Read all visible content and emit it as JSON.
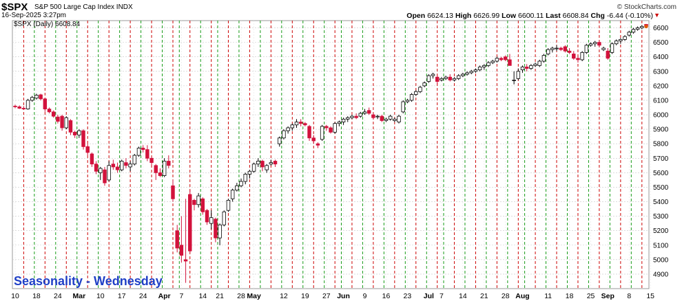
{
  "header": {
    "symbol": "$SPX",
    "description": "S&P 500 Large Cap Index  INDX",
    "credit": "© StockCharts.com",
    "date": "16-Sep-2025 3:27pm",
    "open_label": "Open",
    "open": "6624.13",
    "high_label": "High",
    "high": "6626.99",
    "low_label": "Low",
    "low": "6600.11",
    "last_label": "Last",
    "last": "6608.84",
    "chg_label": "Chg",
    "chg": "-6.44 (-0.10%)",
    "chg_icon": "down-triangle-icon"
  },
  "legend": {
    "text": "$SPX (Daily) 6608.84"
  },
  "overlay_text": "Seasonality - Wednesday",
  "colors": {
    "up": "#ffffff",
    "down": "#d2123c",
    "wed_line": "#cc0000",
    "other_line": "#159a15",
    "grid": "#c8c8c8",
    "title_text": "#1f3fc6"
  },
  "chart_data": {
    "type": "candlestick",
    "title": "$SPX (Daily)",
    "ylim": [
      4800,
      6650
    ],
    "y_ticks": [
      4900,
      5000,
      5100,
      5200,
      5300,
      5400,
      5500,
      5600,
      5700,
      5800,
      5900,
      6000,
      6100,
      6200,
      6300,
      6400,
      6500,
      6600
    ],
    "grid": true,
    "x_tick_labels": [
      {
        "label": "10",
        "day": 0
      },
      {
        "label": "18",
        "day": 5
      },
      {
        "label": "24",
        "day": 10
      },
      {
        "label": "Mar",
        "day": 15,
        "bold": true
      },
      {
        "label": "10",
        "day": 20
      },
      {
        "label": "17",
        "day": 25
      },
      {
        "label": "24",
        "day": 30
      },
      {
        "label": "Apr",
        "day": 35,
        "bold": true
      },
      {
        "label": "7",
        "day": 39
      },
      {
        "label": "14",
        "day": 44
      },
      {
        "label": "21",
        "day": 48
      },
      {
        "label": "28",
        "day": 53
      },
      {
        "label": "May",
        "day": 56,
        "bold": true
      },
      {
        "label": "12",
        "day": 63
      },
      {
        "label": "19",
        "day": 68
      },
      {
        "label": "27",
        "day": 73
      },
      {
        "label": "Jun",
        "day": 77,
        "bold": true
      },
      {
        "label": "9",
        "day": 82
      },
      {
        "label": "16",
        "day": 87
      },
      {
        "label": "23",
        "day": 92
      },
      {
        "label": "Jul",
        "day": 97,
        "bold": true
      },
      {
        "label": "7",
        "day": 100
      },
      {
        "label": "14",
        "day": 105
      },
      {
        "label": "21",
        "day": 110
      },
      {
        "label": "28",
        "day": 115
      },
      {
        "label": "Aug",
        "day": 119,
        "bold": true
      },
      {
        "label": "11",
        "day": 125
      },
      {
        "label": "18",
        "day": 130
      },
      {
        "label": "25",
        "day": 135
      },
      {
        "label": "Sep",
        "day": 139,
        "bold": true
      },
      {
        "label": "8",
        "day": 144
      },
      {
        "label": "15",
        "day": 149
      }
    ],
    "vertical_markers": {
      "wednesday_days": [
        2,
        7,
        12,
        17,
        22,
        27,
        32,
        37,
        41,
        46,
        50,
        55,
        60,
        65,
        70,
        75,
        79,
        84,
        89,
        94,
        99,
        103,
        108,
        113,
        118,
        122,
        127,
        132,
        137,
        142,
        147
      ],
      "other_days": [
        5,
        10,
        15,
        20,
        25,
        30,
        35,
        39,
        44,
        48,
        53,
        58,
        63,
        68,
        73,
        77,
        82,
        87,
        92,
        97,
        101,
        106,
        111,
        116,
        120,
        125,
        130,
        135,
        140,
        145
      ]
    },
    "candles": [
      [
        6060,
        6070,
        6045,
        6055
      ],
      [
        6055,
        6065,
        6040,
        6045
      ],
      [
        6045,
        6060,
        6035,
        6040
      ],
      [
        6040,
        6110,
        6035,
        6100
      ],
      [
        6100,
        6130,
        6090,
        6120
      ],
      [
        6115,
        6145,
        6105,
        6135
      ],
      [
        6138,
        6145,
        6100,
        6110
      ],
      [
        6110,
        6115,
        6020,
        6040
      ],
      [
        6040,
        6050,
        6010,
        6020
      ],
      [
        6020,
        6030,
        5980,
        5990
      ],
      [
        5985,
        6000,
        5940,
        5955
      ],
      [
        5990,
        6000,
        5890,
        5910
      ],
      [
        5910,
        5990,
        5900,
        5980
      ],
      [
        5960,
        5970,
        5860,
        5880
      ],
      [
        5880,
        5890,
        5840,
        5860
      ],
      [
        5860,
        5900,
        5840,
        5890
      ],
      [
        5890,
        5900,
        5760,
        5780
      ],
      [
        5780,
        5800,
        5720,
        5740
      ],
      [
        5730,
        5740,
        5640,
        5660
      ],
      [
        5660,
        5680,
        5590,
        5610
      ],
      [
        5600,
        5640,
        5550,
        5630
      ],
      [
        5620,
        5640,
        5510,
        5530
      ],
      [
        5550,
        5680,
        5540,
        5650
      ],
      [
        5660,
        5690,
        5620,
        5640
      ],
      [
        5640,
        5670,
        5600,
        5620
      ],
      [
        5620,
        5690,
        5610,
        5680
      ],
      [
        5670,
        5700,
        5630,
        5650
      ],
      [
        5640,
        5680,
        5610,
        5660
      ],
      [
        5660,
        5730,
        5650,
        5720
      ],
      [
        5720,
        5780,
        5710,
        5770
      ],
      [
        5770,
        5790,
        5740,
        5760
      ],
      [
        5760,
        5790,
        5680,
        5700
      ],
      [
        5700,
        5710,
        5650,
        5670
      ],
      [
        5650,
        5660,
        5550,
        5600
      ],
      [
        5600,
        5630,
        5570,
        5580
      ],
      [
        5580,
        5700,
        5570,
        5680
      ],
      [
        5680,
        5720,
        5630,
        5650
      ],
      [
        5510,
        5550,
        5400,
        5420
      ],
      [
        5200,
        5240,
        5050,
        5080
      ],
      [
        5100,
        5300,
        4980,
        5030
      ],
      [
        5000,
        5420,
        4840,
        4990
      ],
      [
        5450,
        5480,
        5050,
        5060
      ],
      [
        5410,
        5420,
        5340,
        5380
      ],
      [
        5380,
        5460,
        5360,
        5440
      ],
      [
        5420,
        5430,
        5310,
        5330
      ],
      [
        5340,
        5350,
        5240,
        5260
      ],
      [
        5250,
        5340,
        5210,
        5290
      ],
      [
        5280,
        5290,
        5120,
        5150
      ],
      [
        5150,
        5250,
        5100,
        5240
      ],
      [
        5240,
        5340,
        5230,
        5330
      ],
      [
        5340,
        5420,
        5330,
        5410
      ],
      [
        5420,
        5490,
        5400,
        5480
      ],
      [
        5480,
        5530,
        5470,
        5510
      ],
      [
        5510,
        5560,
        5500,
        5540
      ],
      [
        5540,
        5600,
        5520,
        5590
      ],
      [
        5590,
        5620,
        5560,
        5610
      ],
      [
        5610,
        5670,
        5600,
        5660
      ],
      [
        5660,
        5700,
        5640,
        5680
      ],
      [
        5680,
        5690,
        5610,
        5640
      ],
      [
        5620,
        5660,
        5600,
        5650
      ],
      [
        5660,
        5690,
        5650,
        5670
      ],
      [
        5680,
        5690,
        5640,
        5660
      ],
      [
        5800,
        5850,
        5780,
        5840
      ],
      [
        5840,
        5900,
        5830,
        5890
      ],
      [
        5890,
        5920,
        5870,
        5910
      ],
      [
        5910,
        5940,
        5890,
        5930
      ],
      [
        5930,
        5970,
        5910,
        5950
      ],
      [
        5950,
        5970,
        5920,
        5940
      ],
      [
        5940,
        5950,
        5920,
        5930
      ],
      [
        5920,
        5930,
        5820,
        5840
      ],
      [
        5840,
        5860,
        5800,
        5820
      ],
      [
        5800,
        5810,
        5770,
        5790
      ],
      [
        5830,
        5930,
        5820,
        5920
      ],
      [
        5920,
        5930,
        5890,
        5910
      ],
      [
        5910,
        5920,
        5870,
        5880
      ],
      [
        5880,
        5950,
        5870,
        5940
      ],
      [
        5940,
        5960,
        5920,
        5950
      ],
      [
        5950,
        5980,
        5930,
        5970
      ],
      [
        5970,
        5990,
        5950,
        5980
      ],
      [
        5980,
        6000,
        5970,
        5990
      ],
      [
        5990,
        6010,
        5970,
        5980
      ],
      [
        5990,
        6020,
        5980,
        6010
      ],
      [
        6010,
        6040,
        6000,
        6020
      ],
      [
        6030,
        6050,
        6000,
        6010
      ],
      [
        6000,
        6010,
        5970,
        5980
      ],
      [
        5990,
        6000,
        5970,
        5990
      ],
      [
        5990,
        6000,
        5950,
        5960
      ],
      [
        5960,
        5980,
        5950,
        5970
      ],
      [
        5970,
        6000,
        5960,
        5990
      ],
      [
        5960,
        5980,
        5950,
        5970
      ],
      [
        5950,
        6000,
        5940,
        5990
      ],
      [
        6020,
        6100,
        6010,
        6090
      ],
      [
        6090,
        6110,
        6080,
        6100
      ],
      [
        6100,
        6150,
        6090,
        6140
      ],
      [
        6140,
        6170,
        6130,
        6160
      ],
      [
        6160,
        6200,
        6150,
        6190
      ],
      [
        6200,
        6230,
        6190,
        6220
      ],
      [
        6230,
        6280,
        6220,
        6270
      ],
      [
        6270,
        6290,
        6250,
        6280
      ],
      [
        6260,
        6270,
        6210,
        6230
      ],
      [
        6240,
        6260,
        6230,
        6250
      ],
      [
        6250,
        6270,
        6240,
        6260
      ],
      [
        6260,
        6280,
        6230,
        6240
      ],
      [
        6240,
        6260,
        6230,
        6250
      ],
      [
        6250,
        6280,
        6240,
        6270
      ],
      [
        6270,
        6290,
        6260,
        6280
      ],
      [
        6280,
        6300,
        6270,
        6290
      ],
      [
        6290,
        6310,
        6280,
        6300
      ],
      [
        6300,
        6320,
        6290,
        6310
      ],
      [
        6310,
        6340,
        6300,
        6330
      ],
      [
        6330,
        6350,
        6310,
        6340
      ],
      [
        6340,
        6370,
        6330,
        6360
      ],
      [
        6360,
        6380,
        6350,
        6370
      ],
      [
        6370,
        6400,
        6360,
        6390
      ],
      [
        6390,
        6400,
        6370,
        6380
      ],
      [
        6400,
        6410,
        6370,
        6380
      ],
      [
        6380,
        6420,
        6340,
        6340
      ],
      [
        6240,
        6300,
        6210,
        6240
      ],
      [
        6250,
        6320,
        6240,
        6300
      ],
      [
        6310,
        6340,
        6290,
        6330
      ],
      [
        6330,
        6350,
        6300,
        6320
      ],
      [
        6320,
        6350,
        6310,
        6340
      ],
      [
        6340,
        6360,
        6330,
        6350
      ],
      [
        6340,
        6380,
        6330,
        6370
      ],
      [
        6370,
        6420,
        6360,
        6410
      ],
      [
        6420,
        6460,
        6410,
        6450
      ],
      [
        6450,
        6470,
        6430,
        6460
      ],
      [
        6460,
        6480,
        6440,
        6460
      ],
      [
        6460,
        6470,
        6440,
        6450
      ],
      [
        6470,
        6480,
        6430,
        6440
      ],
      [
        6440,
        6460,
        6420,
        6430
      ],
      [
        6420,
        6440,
        6380,
        6390
      ],
      [
        6390,
        6400,
        6360,
        6380
      ],
      [
        6380,
        6440,
        6370,
        6430
      ],
      [
        6430,
        6490,
        6420,
        6480
      ],
      [
        6480,
        6500,
        6470,
        6490
      ],
      [
        6490,
        6510,
        6470,
        6500
      ],
      [
        6500,
        6510,
        6470,
        6480
      ],
      [
        6450,
        6470,
        6440,
        6460
      ],
      [
        6440,
        6460,
        6380,
        6390
      ],
      [
        6430,
        6500,
        6420,
        6490
      ],
      [
        6490,
        6520,
        6480,
        6510
      ],
      [
        6510,
        6530,
        6490,
        6520
      ],
      [
        6520,
        6550,
        6510,
        6540
      ],
      [
        6550,
        6580,
        6540,
        6570
      ],
      [
        6570,
        6600,
        6560,
        6590
      ],
      [
        6590,
        6610,
        6580,
        6600
      ],
      [
        6600,
        6620,
        6590,
        6610
      ],
      [
        6624.13,
        6626.99,
        6600.11,
        6608.84
      ]
    ]
  }
}
